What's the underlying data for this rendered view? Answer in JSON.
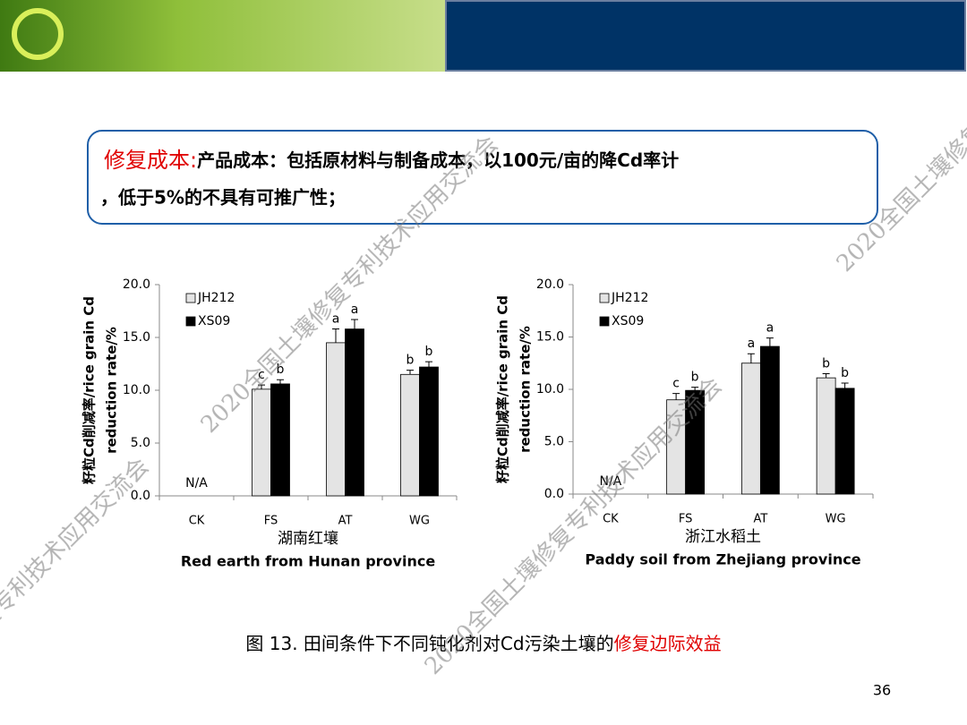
{
  "callout": {
    "label": "修复成本",
    "separator": ":",
    "line1": "产品成本：包括原材料与制备成本，以100元/亩的降Cd率计",
    "line2": "，低于5%的不具有可推广性；"
  },
  "caption": {
    "text": "图 13. 田间条件下不同钝化剂对Cd污染土壤的",
    "highlight": "修复边际效益"
  },
  "page_number": "36",
  "watermark": "2020全国土壤修复专利技术应用交流会",
  "chart_data": [
    {
      "type": "bar",
      "categories": [
        "CK",
        "FS",
        "AT",
        "WG"
      ],
      "ylabel": [
        "籽粒Cd削减率/rice grain Cd",
        "reduction rate/%"
      ],
      "subtitle": "湖南红壤",
      "xlabel": "Red earth from Hunan province",
      "ylim": [
        0,
        20
      ],
      "yticks": [
        {
          "value": 0,
          "label": "0.0"
        },
        {
          "value": 5,
          "label": "5.0"
        },
        {
          "value": 10,
          "label": "10.0"
        },
        {
          "value": 15,
          "label": "15.0"
        },
        {
          "value": 20,
          "label": "20.0"
        }
      ],
      "legend": "top-left",
      "annotations": [
        {
          "text": "N/A",
          "category": "CK"
        }
      ],
      "series": [
        {
          "name": "JH212",
          "color": "#e4e4e4",
          "values": [
            null,
            10.1,
            14.5,
            11.5
          ],
          "errors": [
            null,
            0.4,
            1.3,
            0.4
          ],
          "letters": [
            null,
            "c",
            "a",
            "b"
          ]
        },
        {
          "name": "XS09",
          "color": "#000000",
          "values": [
            null,
            10.6,
            15.8,
            12.2
          ],
          "errors": [
            null,
            0.4,
            0.9,
            0.5
          ],
          "letters": [
            null,
            "b",
            "a",
            "b"
          ]
        }
      ]
    },
    {
      "type": "bar",
      "categories": [
        "CK",
        "FS",
        "AT",
        "WG"
      ],
      "ylabel": [
        "籽粒Cd削减率/rice grain Cd",
        "reduction rate/%"
      ],
      "subtitle": "浙江水稻土",
      "xlabel": "Paddy soil from Zhejiang province",
      "ylim": [
        0,
        20
      ],
      "yticks": [
        {
          "value": 0,
          "label": "0.0"
        },
        {
          "value": 5,
          "label": "5.0"
        },
        {
          "value": 10,
          "label": "10.0"
        },
        {
          "value": 15,
          "label": "15.0"
        },
        {
          "value": 20,
          "label": "20.0"
        }
      ],
      "legend": "top-left",
      "annotations": [
        {
          "text": "N/A",
          "category": "CK"
        }
      ],
      "series": [
        {
          "name": "JH212",
          "color": "#e4e4e4",
          "values": [
            null,
            9.0,
            12.5,
            11.1
          ],
          "errors": [
            null,
            0.6,
            0.9,
            0.4
          ],
          "letters": [
            null,
            "c",
            "a",
            "b"
          ]
        },
        {
          "name": "XS09",
          "color": "#000000",
          "values": [
            null,
            9.9,
            14.1,
            10.1
          ],
          "errors": [
            null,
            0.3,
            0.8,
            0.5
          ],
          "letters": [
            null,
            "b",
            "a",
            "b"
          ]
        }
      ]
    }
  ]
}
